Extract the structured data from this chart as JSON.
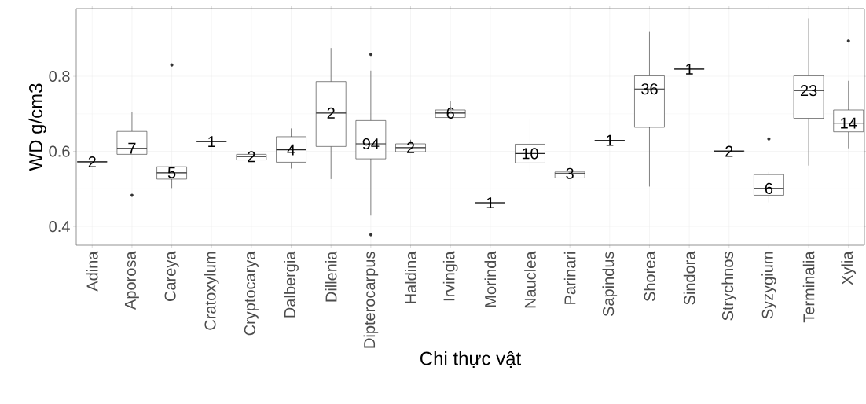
{
  "chart_data": {
    "type": "box",
    "xlabel": "Chi thực vật",
    "ylabel": "WD g/cm3",
    "categories": [
      "Adina",
      "Aporosa",
      "Careya",
      "Cratoxylum",
      "Cryptocarya",
      "Dalbergia",
      "Dillenia",
      "Dipterocarpus",
      "Haldina",
      "Irvingia",
      "Morinda",
      "Nauclea",
      "Parinari",
      "Sapindus",
      "Shorea",
      "Sindora",
      "Strychnos",
      "Syzygium",
      "Terminalia",
      "Xylia"
    ],
    "boxes": [
      {
        "low": 0.572,
        "q1": 0.572,
        "median": 0.572,
        "q3": 0.572,
        "high": 0.572
      },
      {
        "low": 0.592,
        "q1": 0.592,
        "median": 0.608,
        "q3": 0.653,
        "high": 0.705,
        "outliers": [
          0.483
        ]
      },
      {
        "low": 0.502,
        "q1": 0.526,
        "median": 0.543,
        "q3": 0.559,
        "high": 0.559,
        "outliers": [
          0.83
        ]
      },
      {
        "low": 0.626,
        "q1": 0.626,
        "median": 0.626,
        "q3": 0.626,
        "high": 0.626
      },
      {
        "low": 0.577,
        "q1": 0.577,
        "median": 0.586,
        "q3": 0.592,
        "high": 0.592
      },
      {
        "low": 0.554,
        "q1": 0.571,
        "median": 0.604,
        "q3": 0.639,
        "high": 0.661
      },
      {
        "low": 0.526,
        "q1": 0.613,
        "median": 0.702,
        "q3": 0.786,
        "high": 0.875
      },
      {
        "low": 0.429,
        "q1": 0.58,
        "median": 0.62,
        "q3": 0.682,
        "high": 0.815,
        "outliers": [
          0.858,
          0.378
        ]
      },
      {
        "low": 0.599,
        "q1": 0.599,
        "median": 0.61,
        "q3": 0.62,
        "high": 0.631
      },
      {
        "low": 0.69,
        "q1": 0.69,
        "median": 0.702,
        "q3": 0.71,
        "high": 0.735
      },
      {
        "low": 0.463,
        "q1": 0.463,
        "median": 0.463,
        "q3": 0.463,
        "high": 0.463
      },
      {
        "low": 0.546,
        "q1": 0.569,
        "median": 0.594,
        "q3": 0.619,
        "high": 0.687
      },
      {
        "low": 0.529,
        "q1": 0.529,
        "median": 0.541,
        "q3": 0.545,
        "high": 0.545
      },
      {
        "low": 0.629,
        "q1": 0.629,
        "median": 0.629,
        "q3": 0.629,
        "high": 0.629
      },
      {
        "low": 0.506,
        "q1": 0.664,
        "median": 0.766,
        "q3": 0.801,
        "high": 0.918
      },
      {
        "low": 0.819,
        "q1": 0.819,
        "median": 0.819,
        "q3": 0.819,
        "high": 0.819
      },
      {
        "low": 0.598,
        "q1": 0.598,
        "median": 0.6,
        "q3": 0.602,
        "high": 0.602
      },
      {
        "low": 0.464,
        "q1": 0.483,
        "median": 0.501,
        "q3": 0.538,
        "high": 0.545,
        "outliers": [
          0.633
        ]
      },
      {
        "low": 0.562,
        "q1": 0.688,
        "median": 0.762,
        "q3": 0.801,
        "high": 0.954
      },
      {
        "low": 0.608,
        "q1": 0.652,
        "median": 0.675,
        "q3": 0.71,
        "high": 0.788,
        "outliers": [
          0.894
        ]
      }
    ],
    "annotations": [
      "2",
      "7",
      "5",
      "1",
      "2",
      "4",
      "2",
      "94",
      "2",
      "6",
      "1",
      "10",
      "3",
      "1",
      "36",
      "1",
      "2",
      "6",
      "23",
      "14"
    ],
    "ylim": [
      0.35,
      0.98
    ],
    "yticks": [
      0.4,
      0.6,
      0.8
    ],
    "grid": true
  }
}
